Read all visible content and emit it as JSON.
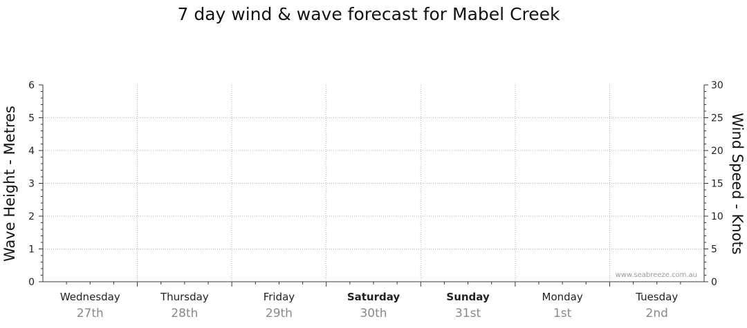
{
  "chart_data": {
    "type": "line",
    "title": "7 day wind & wave forecast for Mabel Creek",
    "y_left": {
      "label": "Wave Height - Metres",
      "ylim": [
        0,
        6
      ],
      "ticks": [
        "0",
        "1",
        "2",
        "3",
        "4",
        "5",
        "6"
      ]
    },
    "y_right": {
      "label": "Wind Speed - Knots",
      "ylim": [
        0,
        30
      ],
      "ticks": [
        "0",
        "5",
        "10",
        "15",
        "20",
        "25",
        "30"
      ]
    },
    "categories": [
      {
        "day": "Wednesday",
        "date": "27th",
        "bold": false
      },
      {
        "day": "Thursday",
        "date": "28th",
        "bold": false
      },
      {
        "day": "Friday",
        "date": "29th",
        "bold": false
      },
      {
        "day": "Saturday",
        "date": "30th",
        "bold": true
      },
      {
        "day": "Sunday",
        "date": "31st",
        "bold": true
      },
      {
        "day": "Monday",
        "date": "1st",
        "bold": false
      },
      {
        "day": "Tuesday",
        "date": "2nd",
        "bold": false
      }
    ],
    "series": [],
    "grid": true,
    "watermark": "www.seabreeze.com.au",
    "colors": {
      "axis": "#333333",
      "grid": "#999999",
      "day_date": "#888888"
    }
  }
}
